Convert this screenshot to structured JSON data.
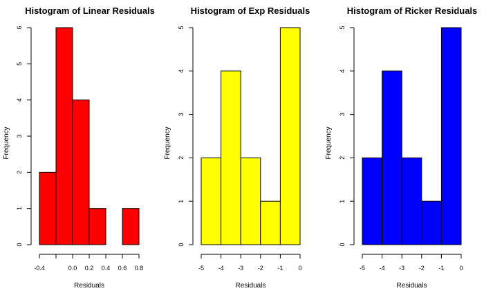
{
  "chart_data": [
    {
      "type": "bar",
      "title": "Histogram of Linear Residuals",
      "xlabel": "Residuals",
      "ylabel": "Frequency",
      "bar_color": "#ff0000",
      "bins": [
        {
          "from": -0.4,
          "to": -0.2,
          "count": 2
        },
        {
          "from": -0.2,
          "to": 0.0,
          "count": 6
        },
        {
          "from": 0.0,
          "to": 0.2,
          "count": 4
        },
        {
          "from": 0.2,
          "to": 0.4,
          "count": 1
        },
        {
          "from": 0.4,
          "to": 0.6,
          "count": 0
        },
        {
          "from": 0.6,
          "to": 0.8,
          "count": 1
        }
      ],
      "xticks": [
        -0.4,
        -0.2,
        0.0,
        0.2,
        0.4,
        0.6,
        0.8
      ],
      "xtick_labels": [
        "-0.4",
        "0.0",
        "0.2",
        "0.4",
        "0.6",
        "0.8"
      ],
      "xtick_label_values": [
        -0.4,
        0.0,
        0.2,
        0.4,
        0.6,
        0.8
      ],
      "xlim": [
        -0.4,
        0.8
      ],
      "yticks": [
        0,
        1,
        2,
        3,
        4,
        5,
        6
      ],
      "ylim": [
        0,
        6
      ]
    },
    {
      "type": "bar",
      "title": "Histogram of Exp Residuals",
      "xlabel": "Residuals",
      "ylabel": "Frequency",
      "bar_color": "#ffff00",
      "bins": [
        {
          "from": -5,
          "to": -4,
          "count": 2
        },
        {
          "from": -4,
          "to": -3,
          "count": 4
        },
        {
          "from": -3,
          "to": -2,
          "count": 2
        },
        {
          "from": -2,
          "to": -1,
          "count": 1
        },
        {
          "from": -1,
          "to": 0,
          "count": 5
        }
      ],
      "xticks": [
        -5,
        -4,
        -3,
        -2,
        -1,
        0
      ],
      "xtick_labels": [
        "-5",
        "-4",
        "-3",
        "-2",
        "-1",
        "0"
      ],
      "xtick_label_values": [
        -5,
        -4,
        -3,
        -2,
        -1,
        0
      ],
      "xlim": [
        -5,
        0
      ],
      "yticks": [
        0,
        1,
        2,
        3,
        4,
        5
      ],
      "ylim": [
        0,
        5
      ]
    },
    {
      "type": "bar",
      "title": "Histogram of Ricker Residuals",
      "xlabel": "Residuals",
      "ylabel": "Frequency",
      "bar_color": "#0000ff",
      "bins": [
        {
          "from": -5,
          "to": -4,
          "count": 2
        },
        {
          "from": -4,
          "to": -3,
          "count": 4
        },
        {
          "from": -3,
          "to": -2,
          "count": 2
        },
        {
          "from": -2,
          "to": -1,
          "count": 1
        },
        {
          "from": -1,
          "to": 0,
          "count": 5
        }
      ],
      "xticks": [
        -5,
        -4,
        -3,
        -2,
        -1,
        0
      ],
      "xtick_labels": [
        "-5",
        "-4",
        "-3",
        "-2",
        "-1",
        "0"
      ],
      "xtick_label_values": [
        -5,
        -4,
        -3,
        -2,
        -1,
        0
      ],
      "xlim": [
        -5,
        0
      ],
      "yticks": [
        0,
        1,
        2,
        3,
        4,
        5
      ],
      "ylim": [
        0,
        5
      ]
    }
  ]
}
